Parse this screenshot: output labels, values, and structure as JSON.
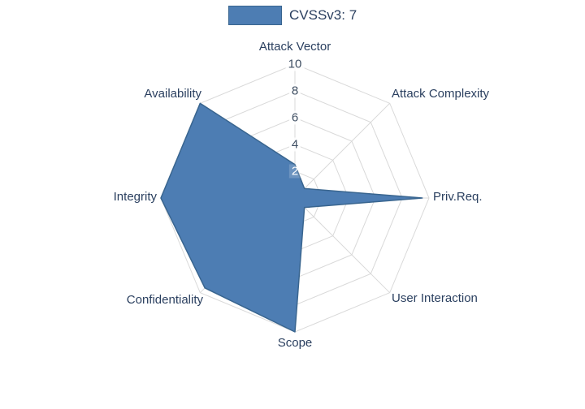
{
  "legend": {
    "label": "CVSSv3: 7"
  },
  "colors": {
    "fill": "#4d7db3",
    "stroke": "#39658f",
    "grid": "#d9d9d9",
    "label": "#2a3f5f"
  },
  "chart_data": {
    "type": "radar",
    "title": "CVSSv3: 7",
    "categories": [
      "Attack Vector",
      "Attack Complexity",
      "Priv.Req.",
      "User Interaction",
      "Scope",
      "Confidentiality",
      "Integrity",
      "Availability"
    ],
    "series": [
      {
        "name": "CVSSv3: 7",
        "values": [
          2.5,
          1,
          9.5,
          1,
          10,
          9.5,
          10,
          10
        ]
      }
    ],
    "ticks": [
      2,
      4,
      6,
      8,
      10
    ],
    "range": [
      0,
      10
    ],
    "grid": "spiderweb",
    "legend_position": "top-center"
  }
}
